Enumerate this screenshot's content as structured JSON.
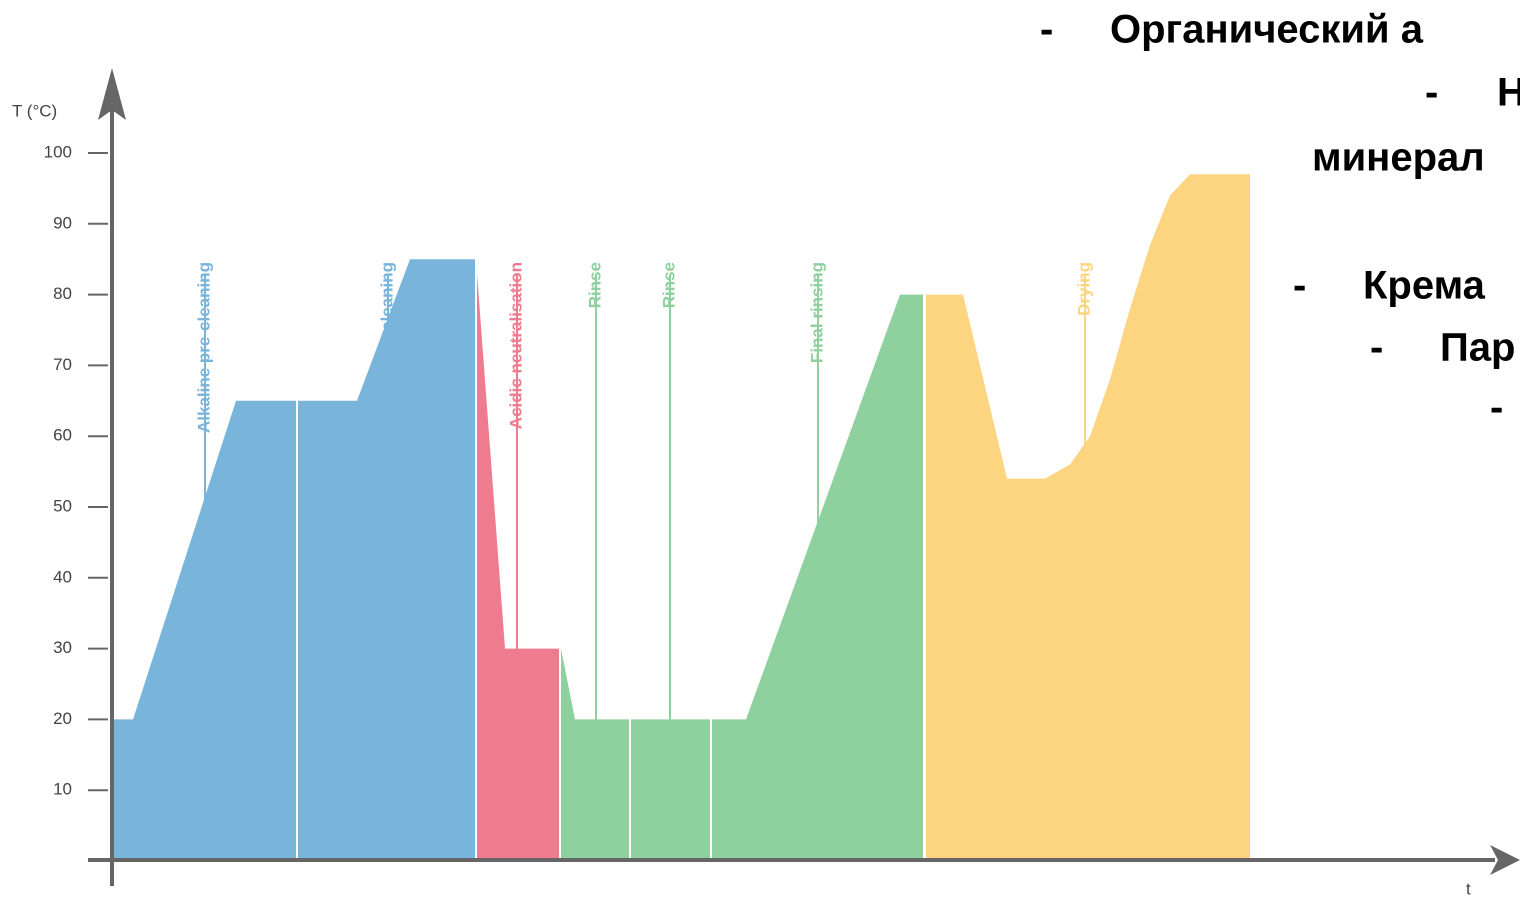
{
  "chart_data": {
    "type": "area",
    "y_label": "T (°C)",
    "x_label": "t",
    "ylim": [
      0,
      100
    ],
    "yticks": [
      10,
      20,
      30,
      40,
      50,
      60,
      70,
      80,
      90,
      100
    ],
    "xlim": [
      0,
      139
    ],
    "series": [
      {
        "name": "Alkaline pre-cleaning",
        "color": "#79b5da",
        "label_x": 9.3,
        "x": [
          0,
          2.1,
          12.4,
          18.4
        ],
        "values": [
          20,
          20,
          65,
          65
        ]
      },
      {
        "name": "Alkaline cleaning",
        "color": "#79b5da",
        "label_x": 27.6,
        "x": [
          18.6,
          24.5,
          29.8,
          36.3
        ],
        "values": [
          65,
          65,
          85,
          85
        ]
      },
      {
        "name": "Acidic neutralisation",
        "color": "#ee7b8e",
        "label_x": 40.5,
        "x": [
          36.5,
          39.3,
          44.7
        ],
        "values": [
          83,
          30,
          30
        ]
      },
      {
        "name": "Rinse",
        "color": "#8ed09e",
        "label_x": 48.4,
        "x": [
          44.9,
          46.3,
          51.7
        ],
        "values": [
          30,
          20,
          20
        ]
      },
      {
        "name": "Rinse",
        "color": "#8ed09e",
        "label_x": 55.8,
        "x": [
          51.9,
          59.8
        ],
        "values": [
          20,
          20
        ]
      },
      {
        "name": "Final rinsing",
        "color": "#8ed09e",
        "label_x": 70.6,
        "x": [
          60,
          63.4,
          78.8,
          81.1
        ],
        "values": [
          20,
          20,
          80,
          80
        ]
      },
      {
        "name": "Drying",
        "color": "#fdd47f",
        "label_x": 97.3,
        "x": [
          81.4,
          85.1,
          89.5,
          93.3,
          95.8,
          97.8,
          99.8,
          101.8,
          103.8,
          105.8,
          107.8,
          113.8
        ],
        "values": [
          80,
          80,
          54,
          54,
          56,
          60,
          68,
          78,
          87,
          94,
          97,
          97
        ]
      }
    ]
  },
  "overlay_text": [
    {
      "dash": "-",
      "text": "Органический а"
    },
    {
      "dash": "-",
      "text": "Н"
    },
    {
      "dash": "",
      "text": "минерал"
    },
    {
      "dash": "-",
      "text": "Крема"
    },
    {
      "dash": "-",
      "text": "Пар"
    },
    {
      "dash": "-",
      "text": ""
    }
  ]
}
